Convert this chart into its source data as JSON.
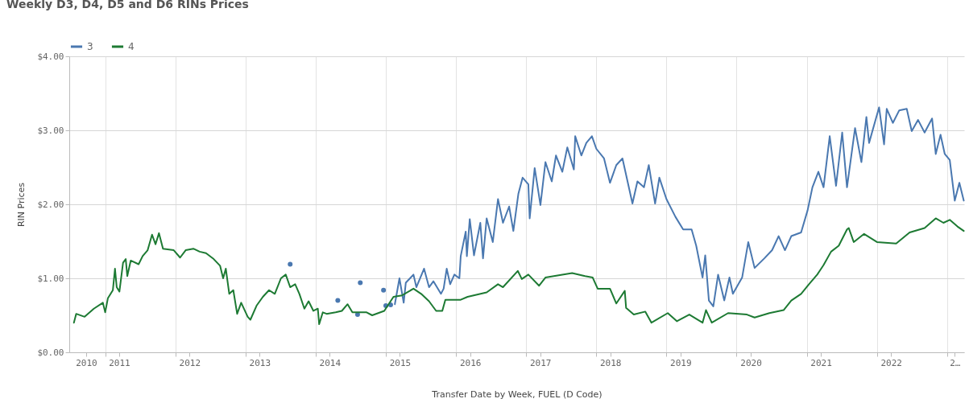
{
  "chart_data": {
    "type": "line",
    "title": "Weekly D3, D4, D5 and D6 RINs Prices",
    "xlabel": "Transfer Date by Week, FUEL (D Code)",
    "ylabel": "RIN Prices",
    "legend": "top left",
    "grid": true,
    "xlim": [
      "2010-06-28",
      "2023-03-31"
    ],
    "xticks": [
      {
        "value": "2010-09-24",
        "label": "2010"
      },
      {
        "value": "2011-01-01",
        "label": null
      },
      {
        "value": "2011-03-15",
        "label": "2011"
      },
      {
        "value": "2012-01-01",
        "label": null
      },
      {
        "value": "2012-03-15",
        "label": "2012"
      },
      {
        "value": "2013-01-01",
        "label": null
      },
      {
        "value": "2013-03-15",
        "label": "2013"
      },
      {
        "value": "2014-01-01",
        "label": null
      },
      {
        "value": "2014-03-15",
        "label": "2014"
      },
      {
        "value": "2015-01-01",
        "label": null
      },
      {
        "value": "2015-03-15",
        "label": "2015"
      },
      {
        "value": "2016-01-01",
        "label": null
      },
      {
        "value": "2016-03-15",
        "label": "2016"
      },
      {
        "value": "2017-01-01",
        "label": null
      },
      {
        "value": "2017-03-15",
        "label": "2017"
      },
      {
        "value": "2018-01-01",
        "label": null
      },
      {
        "value": "2018-03-15",
        "label": "2018"
      },
      {
        "value": "2019-01-01",
        "label": null
      },
      {
        "value": "2019-03-15",
        "label": "2019"
      },
      {
        "value": "2020-01-01",
        "label": null
      },
      {
        "value": "2020-03-15",
        "label": "2020"
      },
      {
        "value": "2021-01-01",
        "label": null
      },
      {
        "value": "2021-03-15",
        "label": "2021"
      },
      {
        "value": "2022-01-01",
        "label": null
      },
      {
        "value": "2022-03-15",
        "label": "2022"
      },
      {
        "value": "2023-01-01",
        "label": null
      },
      {
        "value": "2023-02-10",
        "label": "2…"
      }
    ],
    "ylim": [
      0,
      4
    ],
    "yticks": [
      {
        "value": 0,
        "label": "$0.00"
      },
      {
        "value": 1,
        "label": "$1.00"
      },
      {
        "value": 2,
        "label": "$2.00"
      },
      {
        "value": 3,
        "label": "$3.00"
      },
      {
        "value": 4,
        "label": "$4.00"
      }
    ],
    "series": [
      {
        "name": "3",
        "color": "#4a78b0",
        "type": "line",
        "x": [
          "2015-02-17",
          "2015-03-13",
          "2015-04-04",
          "2015-04-15",
          "2015-05-07",
          "2015-05-25",
          "2015-06-09",
          "2015-07-19",
          "2015-08-14",
          "2015-09-06",
          "2015-10-15",
          "2015-10-29",
          "2015-11-14",
          "2015-12-02",
          "2015-12-24",
          "2016-01-19",
          "2016-01-26",
          "2016-02-21",
          "2016-02-27",
          "2016-03-13",
          "2016-04-04",
          "2016-05-07",
          "2016-05-21",
          "2016-06-09",
          "2016-07-11",
          "2016-08-07",
          "2016-09-02",
          "2016-10-04",
          "2016-10-26",
          "2016-11-21",
          "2016-12-13",
          "2017-01-12",
          "2017-01-19",
          "2017-02-14",
          "2017-03-16",
          "2017-04-11",
          "2017-05-14",
          "2017-06-05",
          "2017-07-08",
          "2017-08-03",
          "2017-09-06",
          "2017-09-13",
          "2017-10-15",
          "2017-11-10",
          "2017-12-09",
          "2018-01-01",
          "2018-02-10",
          "2018-03-13",
          "2018-04-15",
          "2018-05-17",
          "2018-07-08",
          "2018-08-03",
          "2018-09-06",
          "2018-10-01",
          "2018-11-03",
          "2018-11-25",
          "2019-01-01",
          "2019-02-17",
          "2019-03-29",
          "2019-05-12",
          "2019-06-05",
          "2019-07-08",
          "2019-07-22",
          "2019-08-10",
          "2019-09-02",
          "2019-09-27",
          "2019-10-29",
          "2019-11-25",
          "2019-12-13",
          "2020-01-30",
          "2020-03-02",
          "2020-04-04",
          "2020-05-25",
          "2020-07-04",
          "2020-08-07",
          "2020-09-09",
          "2020-10-12",
          "2020-12-02",
          "2021-01-05",
          "2021-01-30",
          "2021-03-02",
          "2021-03-29",
          "2021-04-30",
          "2021-06-02",
          "2021-07-04",
          "2021-07-29",
          "2021-09-09",
          "2021-10-12",
          "2021-11-07",
          "2021-11-21",
          "2022-01-12",
          "2022-02-07",
          "2022-02-21",
          "2022-03-25",
          "2022-04-27",
          "2022-06-05",
          "2022-07-01",
          "2022-08-03",
          "2022-09-06",
          "2022-10-15",
          "2022-11-03",
          "2022-11-28",
          "2022-12-20",
          "2023-01-15",
          "2023-02-10",
          "2023-03-06",
          "2023-03-29"
        ],
        "values": [
          0.65,
          1.0,
          0.67,
          0.94,
          1.0,
          1.05,
          0.88,
          1.13,
          0.88,
          0.96,
          0.79,
          0.86,
          1.13,
          0.92,
          1.05,
          1.0,
          1.3,
          1.63,
          1.3,
          1.8,
          1.31,
          1.75,
          1.27,
          1.81,
          1.49,
          2.07,
          1.75,
          1.97,
          1.64,
          2.14,
          2.36,
          2.27,
          1.81,
          2.49,
          1.99,
          2.57,
          2.31,
          2.66,
          2.44,
          2.77,
          2.47,
          2.92,
          2.66,
          2.83,
          2.92,
          2.75,
          2.62,
          2.29,
          2.53,
          2.62,
          2.01,
          2.31,
          2.23,
          2.53,
          2.01,
          2.36,
          2.07,
          1.83,
          1.66,
          1.66,
          1.44,
          1.01,
          1.31,
          0.7,
          0.62,
          1.05,
          0.7,
          1.01,
          0.79,
          1.01,
          1.49,
          1.14,
          1.27,
          1.38,
          1.57,
          1.38,
          1.57,
          1.62,
          1.92,
          2.23,
          2.44,
          2.23,
          2.92,
          2.25,
          2.97,
          2.23,
          3.03,
          2.57,
          3.18,
          2.83,
          3.31,
          2.81,
          3.29,
          3.1,
          3.27,
          3.29,
          2.99,
          3.14,
          2.97,
          3.16,
          2.68,
          2.94,
          2.68,
          2.6,
          2.05,
          2.29,
          2.05
        ]
      },
      {
        "color": "#4a78b0",
        "type": "scatter",
        "x": [
          "2013-08-21",
          "2014-04-26",
          "2014-08-07",
          "2014-08-21",
          "2014-12-20",
          "2015-01-01",
          "2015-01-26"
        ],
        "values": [
          1.19,
          0.7,
          0.51,
          0.94,
          0.84,
          0.63,
          0.64
        ]
      },
      {
        "name": "4",
        "color": "#1d7a33",
        "type": "line",
        "x": [
          "2010-07-22",
          "2010-08-03",
          "2010-09-16",
          "2010-11-03",
          "2010-12-20",
          "2011-01-01",
          "2011-01-15",
          "2011-02-10",
          "2011-02-21",
          "2011-03-02",
          "2011-03-16",
          "2011-04-04",
          "2011-04-18",
          "2011-04-26",
          "2011-05-14",
          "2011-06-24",
          "2011-07-15",
          "2011-08-10",
          "2011-09-02",
          "2011-09-20",
          "2011-10-08",
          "2011-10-29",
          "2011-12-24",
          "2012-01-26",
          "2012-02-24",
          "2012-04-04",
          "2012-05-07",
          "2012-06-09",
          "2012-07-19",
          "2012-08-21",
          "2012-09-06",
          "2012-09-20",
          "2012-10-08",
          "2012-10-29",
          "2012-11-18",
          "2012-12-09",
          "2013-01-12",
          "2013-01-26",
          "2013-02-27",
          "2013-04-01",
          "2013-05-03",
          "2013-06-02",
          "2013-07-04",
          "2013-07-29",
          "2013-08-21",
          "2013-09-16",
          "2013-10-08",
          "2013-11-03",
          "2013-11-25",
          "2013-12-20",
          "2014-01-12",
          "2014-01-19",
          "2014-02-07",
          "2014-02-27",
          "2014-04-15",
          "2014-05-17",
          "2014-06-16",
          "2014-07-11",
          "2014-09-23",
          "2014-10-22",
          "2014-12-24",
          "2015-02-10",
          "2015-03-27",
          "2015-05-25",
          "2015-07-04",
          "2015-08-14",
          "2015-09-20",
          "2015-10-22",
          "2015-11-07",
          "2016-01-26",
          "2016-03-02",
          "2016-06-09",
          "2016-08-07",
          "2016-09-02",
          "2016-11-18",
          "2016-12-09",
          "2017-01-12",
          "2017-03-09",
          "2017-04-11",
          "2017-07-08",
          "2017-08-28",
          "2017-11-03",
          "2017-12-13",
          "2018-01-08",
          "2018-03-13",
          "2018-04-15",
          "2018-05-29",
          "2018-06-05",
          "2018-07-15",
          "2018-09-13",
          "2018-10-15",
          "2019-01-08",
          "2019-02-24",
          "2019-04-30",
          "2019-07-08",
          "2019-07-26",
          "2019-08-25",
          "2019-11-18",
          "2020-02-24",
          "2020-04-04",
          "2020-06-20",
          "2020-09-02",
          "2020-10-12",
          "2020-12-02",
          "2021-01-12",
          "2021-02-24",
          "2021-03-29",
          "2021-05-07",
          "2021-06-16",
          "2021-07-29",
          "2021-08-07",
          "2021-09-02",
          "2021-10-26",
          "2022-01-01",
          "2022-04-11",
          "2022-06-20",
          "2022-09-06",
          "2022-11-03",
          "2022-12-13",
          "2023-01-15",
          "2023-02-24",
          "2023-03-29"
        ],
        "values": [
          0.4,
          0.52,
          0.48,
          0.59,
          0.67,
          0.54,
          0.73,
          0.84,
          1.13,
          0.88,
          0.82,
          1.21,
          1.26,
          1.03,
          1.24,
          1.19,
          1.3,
          1.38,
          1.59,
          1.46,
          1.61,
          1.4,
          1.38,
          1.28,
          1.38,
          1.4,
          1.36,
          1.34,
          1.26,
          1.17,
          1.0,
          1.13,
          0.79,
          0.84,
          0.52,
          0.67,
          0.48,
          0.44,
          0.63,
          0.75,
          0.84,
          0.79,
          1.0,
          1.05,
          0.88,
          0.92,
          0.79,
          0.59,
          0.69,
          0.56,
          0.59,
          0.38,
          0.54,
          0.52,
          0.54,
          0.56,
          0.65,
          0.54,
          0.54,
          0.5,
          0.56,
          0.75,
          0.77,
          0.86,
          0.79,
          0.69,
          0.56,
          0.56,
          0.71,
          0.71,
          0.75,
          0.81,
          0.92,
          0.88,
          1.1,
          0.99,
          1.05,
          0.9,
          1.01,
          1.05,
          1.07,
          1.03,
          1.01,
          0.86,
          0.86,
          0.66,
          0.83,
          0.6,
          0.51,
          0.55,
          0.4,
          0.53,
          0.42,
          0.51,
          0.4,
          0.57,
          0.4,
          0.53,
          0.51,
          0.47,
          0.53,
          0.57,
          0.7,
          0.79,
          0.92,
          1.05,
          1.18,
          1.36,
          1.44,
          1.66,
          1.68,
          1.49,
          1.6,
          1.49,
          1.47,
          1.62,
          1.68,
          1.81,
          1.75,
          1.79,
          1.7,
          1.64
        ]
      }
    ]
  }
}
